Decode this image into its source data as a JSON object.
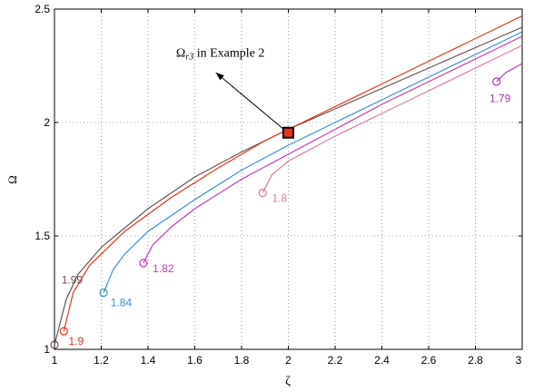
{
  "chart_data": {
    "type": "line",
    "title": "",
    "xlabel": "ζ",
    "ylabel": "Ω",
    "xlim": [
      1,
      3
    ],
    "ylim": [
      1,
      2.5
    ],
    "grid": true,
    "x_ticks": [
      "1",
      "1.2",
      "1.4",
      "1.6",
      "1.8",
      "2",
      "2.2",
      "2.4",
      "2.6",
      "2.8",
      "3"
    ],
    "y_ticks": [
      "1",
      "1.5",
      "2",
      "2.5"
    ],
    "series": [
      {
        "name": "1.99",
        "color": "#6b5050",
        "start": [
          1.0,
          1.02
        ],
        "points": [
          [
            1.0,
            1.02
          ],
          [
            1.05,
            1.22
          ],
          [
            1.1,
            1.33
          ],
          [
            1.2,
            1.45
          ],
          [
            1.4,
            1.62
          ],
          [
            1.6,
            1.76
          ],
          [
            1.8,
            1.87
          ],
          [
            2.0,
            1.97
          ],
          [
            2.2,
            2.06
          ],
          [
            2.4,
            2.15
          ],
          [
            2.6,
            2.24
          ],
          [
            2.8,
            2.33
          ],
          [
            3.0,
            2.42
          ]
        ]
      },
      {
        "name": "1.9",
        "color": "#e8321e",
        "start": [
          1.04,
          1.08
        ],
        "points": [
          [
            1.04,
            1.08
          ],
          [
            1.08,
            1.25
          ],
          [
            1.15,
            1.37
          ],
          [
            1.3,
            1.52
          ],
          [
            1.5,
            1.67
          ],
          [
            1.7,
            1.8
          ],
          [
            1.9,
            1.92
          ],
          [
            2.0,
            1.97
          ],
          [
            2.2,
            2.07
          ],
          [
            2.4,
            2.17
          ],
          [
            2.6,
            2.27
          ],
          [
            2.8,
            2.37
          ],
          [
            3.0,
            2.47
          ]
        ]
      },
      {
        "name": "1.84",
        "color": "#3a8ecf",
        "start": [
          1.21,
          1.25
        ],
        "points": [
          [
            1.21,
            1.25
          ],
          [
            1.25,
            1.35
          ],
          [
            1.3,
            1.42
          ],
          [
            1.4,
            1.52
          ],
          [
            1.6,
            1.66
          ],
          [
            1.8,
            1.79
          ],
          [
            2.0,
            1.9
          ],
          [
            2.2,
            2.0
          ],
          [
            2.4,
            2.1
          ],
          [
            2.6,
            2.2
          ],
          [
            2.8,
            2.3
          ],
          [
            3.0,
            2.4
          ]
        ]
      },
      {
        "name": "1.82",
        "color": "#c43ab0",
        "start": [
          1.38,
          1.38
        ],
        "points": [
          [
            1.38,
            1.38
          ],
          [
            1.42,
            1.46
          ],
          [
            1.5,
            1.54
          ],
          [
            1.6,
            1.62
          ],
          [
            1.8,
            1.75
          ],
          [
            2.0,
            1.86
          ],
          [
            2.2,
            1.97
          ],
          [
            2.4,
            2.08
          ],
          [
            2.6,
            2.18
          ],
          [
            2.8,
            2.28
          ],
          [
            3.0,
            2.38
          ]
        ]
      },
      {
        "name": "1.8",
        "color": "#d87aa0",
        "start": [
          1.89,
          1.69
        ],
        "points": [
          [
            1.89,
            1.69
          ],
          [
            1.93,
            1.77
          ],
          [
            2.0,
            1.83
          ],
          [
            2.2,
            1.94
          ],
          [
            2.4,
            2.04
          ],
          [
            2.6,
            2.14
          ],
          [
            2.8,
            2.24
          ],
          [
            3.0,
            2.34
          ]
        ]
      },
      {
        "name": "1.79",
        "color": "#a43aae",
        "start": [
          2.89,
          2.18
        ],
        "points": [
          [
            2.89,
            2.18
          ],
          [
            2.93,
            2.22
          ],
          [
            3.0,
            2.26
          ]
        ]
      }
    ],
    "series_label_positions": [
      {
        "name": "1.99",
        "at": [
          1.03,
          1.29
        ]
      },
      {
        "name": "1.9",
        "at": [
          1.06,
          1.02
        ]
      },
      {
        "name": "1.84",
        "at": [
          1.24,
          1.19
        ]
      },
      {
        "name": "1.82",
        "at": [
          1.42,
          1.34
        ]
      },
      {
        "name": "1.8",
        "at": [
          1.93,
          1.65
        ]
      },
      {
        "name": "1.79",
        "at": [
          2.86,
          2.09
        ]
      }
    ],
    "marker": {
      "x": 2.0,
      "y": 1.955,
      "fill": "#e8321e",
      "stroke": "#000000"
    },
    "annotation": {
      "text_main": "Ω",
      "text_sub": "r3",
      "text_rest": " in Example 2",
      "text_at": [
        1.52,
        2.29
      ],
      "arrow_from": [
        1.98,
        1.97
      ],
      "arrow_to": [
        1.69,
        2.22
      ]
    }
  }
}
